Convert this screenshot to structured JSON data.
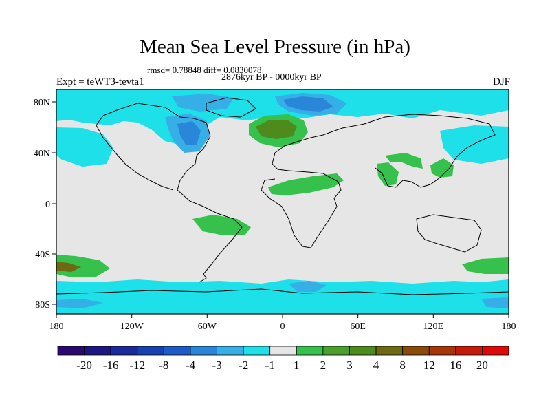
{
  "title": "Mean Sea Level Pressure (in hPa)",
  "stats": "rmsd= 0.78848 diff= 0.0830078",
  "period": "2876kyr BP - 0000kyr BP",
  "experiment": "Expt = teWT3-tevta1",
  "season": "DJF",
  "axes": {
    "x_ticks": [
      "180",
      "120W",
      "60W",
      "0",
      "60E",
      "120E",
      "180"
    ],
    "y_ticks": [
      "80N",
      "40N",
      "0",
      "40S",
      "80S"
    ]
  },
  "colorbar": {
    "labels": [
      "-20",
      "-16",
      "-12",
      "-8",
      "-4",
      "-3",
      "-2",
      "-1",
      "1",
      "2",
      "3",
      "4",
      "8",
      "12",
      "16",
      "20"
    ],
    "colors": [
      "#2a0a6e",
      "#1c1780",
      "#1a2a9a",
      "#1740b0",
      "#1f5bc8",
      "#2a86d8",
      "#36aee6",
      "#1ee0e8",
      "#e6e6e6",
      "#36c04c",
      "#4aa02c",
      "#4f8a1c",
      "#6e6a12",
      "#8a4a0a",
      "#a8340a",
      "#c81a0a",
      "#e00808"
    ]
  },
  "colors": {
    "neutral": "#e6e6e6",
    "cyan": "#1ee0e8",
    "blue_light": "#36aee6",
    "blue_mid": "#2a86d8",
    "blue_dark": "#1f5bc8",
    "green": "#36c04c",
    "green_mid": "#4aa02c",
    "olive": "#4f8a1c",
    "brown": "#6e6a12"
  }
}
